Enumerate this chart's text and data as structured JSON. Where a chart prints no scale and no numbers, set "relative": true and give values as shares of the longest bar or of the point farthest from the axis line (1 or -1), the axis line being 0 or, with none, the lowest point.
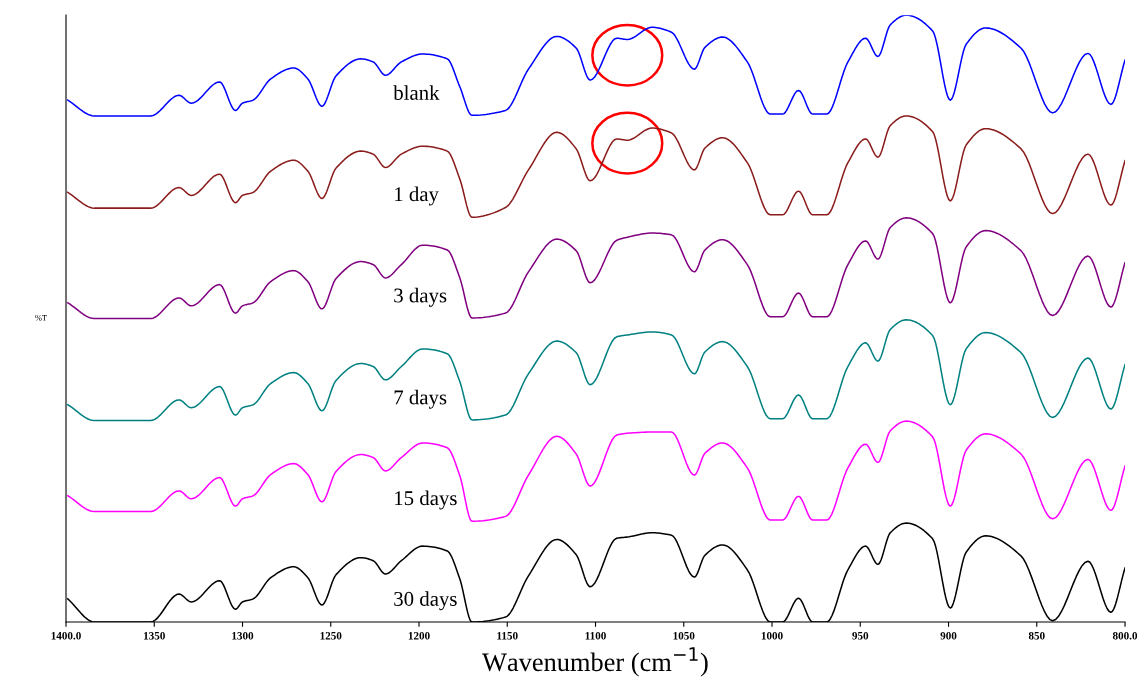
{
  "chart_data": {
    "type": "line",
    "relative": true,
    "xlabel": "Wavenumber (cm$^{−1}$)",
    "ylabel": "%T",
    "xlim": [
      1400,
      800
    ],
    "xticks": [
      {
        "value": 1400,
        "label": "1400.0"
      },
      1350,
      1300,
      1250,
      1200,
      1150,
      1100,
      1050,
      1000,
      950,
      900,
      850,
      {
        "value": 800,
        "label": "800.0"
      }
    ],
    "x": [
      1399,
      1384,
      1352,
      1336,
      1329,
      1313,
      1304,
      1300,
      1294,
      1284,
      1271,
      1263,
      1255,
      1247,
      1233,
      1226,
      1219,
      1210,
      1198,
      1184,
      1177,
      1170,
      1151,
      1138,
      1122,
      1111,
      1103,
      1088,
      1082,
      1068,
      1057,
      1044,
      1038,
      1028,
      1014,
      1001,
      994,
      985,
      977,
      969,
      957,
      947,
      940,
      933,
      924,
      909,
      899,
      890,
      879,
      859,
      841,
      821,
      808,
      800
    ],
    "series": [
      {
        "name": "blank",
        "color": "#0000ff",
        "values": [
          0.86,
          0.834,
          0.834,
          0.868,
          0.855,
          0.89,
          0.843,
          0.855,
          0.86,
          0.895,
          0.913,
          0.895,
          0.85,
          0.9,
          0.928,
          0.923,
          0.901,
          0.923,
          0.936,
          0.928,
          0.883,
          0.835,
          0.843,
          0.911,
          0.965,
          0.946,
          0.893,
          0.962,
          0.96,
          0.98,
          0.972,
          0.911,
          0.947,
          0.964,
          0.923,
          0.837,
          0.837,
          0.876,
          0.837,
          0.837,
          0.923,
          0.962,
          0.932,
          0.984,
          1.0,
          0.974,
          0.86,
          0.952,
          0.979,
          0.946,
          0.839,
          0.937,
          0.853,
          0.926
        ]
      },
      {
        "name": "1 day",
        "color": "#8b1c1c",
        "values": [
          0.708,
          0.682,
          0.682,
          0.716,
          0.703,
          0.738,
          0.691,
          0.703,
          0.708,
          0.743,
          0.761,
          0.743,
          0.698,
          0.748,
          0.776,
          0.771,
          0.749,
          0.771,
          0.784,
          0.776,
          0.731,
          0.667,
          0.683,
          0.745,
          0.807,
          0.78,
          0.727,
          0.796,
          0.794,
          0.814,
          0.806,
          0.745,
          0.781,
          0.798,
          0.757,
          0.671,
          0.671,
          0.71,
          0.671,
          0.671,
          0.757,
          0.796,
          0.766,
          0.818,
          0.834,
          0.808,
          0.694,
          0.786,
          0.813,
          0.78,
          0.673,
          0.771,
          0.687,
          0.76
        ]
      },
      {
        "name": "3 days",
        "color": "#800080",
        "values": [
          0.526,
          0.5,
          0.5,
          0.534,
          0.521,
          0.556,
          0.509,
          0.521,
          0.526,
          0.561,
          0.579,
          0.561,
          0.516,
          0.566,
          0.594,
          0.589,
          0.567,
          0.589,
          0.621,
          0.613,
          0.568,
          0.501,
          0.509,
          0.577,
          0.631,
          0.612,
          0.559,
          0.629,
          0.634,
          0.641,
          0.638,
          0.577,
          0.613,
          0.63,
          0.589,
          0.503,
          0.503,
          0.542,
          0.503,
          0.503,
          0.589,
          0.628,
          0.598,
          0.65,
          0.666,
          0.64,
          0.526,
          0.618,
          0.645,
          0.612,
          0.505,
          0.603,
          0.519,
          0.592
        ]
      },
      {
        "name": "7 days",
        "color": "#008080",
        "values": [
          0.358,
          0.332,
          0.332,
          0.366,
          0.353,
          0.388,
          0.341,
          0.353,
          0.358,
          0.393,
          0.411,
          0.393,
          0.348,
          0.398,
          0.426,
          0.421,
          0.399,
          0.421,
          0.45,
          0.442,
          0.397,
          0.333,
          0.341,
          0.409,
          0.463,
          0.444,
          0.391,
          0.47,
          0.473,
          0.478,
          0.473,
          0.409,
          0.445,
          0.462,
          0.421,
          0.335,
          0.335,
          0.374,
          0.335,
          0.335,
          0.421,
          0.46,
          0.43,
          0.482,
          0.498,
          0.472,
          0.358,
          0.45,
          0.477,
          0.444,
          0.337,
          0.435,
          0.351,
          0.424
        ]
      },
      {
        "name": "15 days",
        "color": "#ff00ff",
        "values": [
          0.208,
          0.182,
          0.182,
          0.216,
          0.203,
          0.238,
          0.191,
          0.203,
          0.208,
          0.243,
          0.261,
          0.243,
          0.198,
          0.248,
          0.276,
          0.271,
          0.249,
          0.271,
          0.295,
          0.287,
          0.242,
          0.166,
          0.174,
          0.242,
          0.306,
          0.277,
          0.224,
          0.308,
          0.311,
          0.313,
          0.313,
          0.242,
          0.278,
          0.295,
          0.254,
          0.168,
          0.168,
          0.207,
          0.168,
          0.168,
          0.254,
          0.293,
          0.263,
          0.315,
          0.331,
          0.305,
          0.191,
          0.283,
          0.31,
          0.277,
          0.17,
          0.268,
          0.184,
          0.257
        ]
      },
      {
        "name": "30 days",
        "color": "#000000",
        "values": [
          0.038,
          0.0,
          0.0,
          0.046,
          0.033,
          0.068,
          0.021,
          0.033,
          0.038,
          0.073,
          0.091,
          0.073,
          0.028,
          0.078,
          0.106,
          0.101,
          0.079,
          0.101,
          0.125,
          0.117,
          0.072,
          0.0,
          0.008,
          0.076,
          0.136,
          0.111,
          0.058,
          0.138,
          0.14,
          0.147,
          0.143,
          0.074,
          0.11,
          0.127,
          0.086,
          0.0,
          0.0,
          0.039,
          0.0,
          0.0,
          0.086,
          0.125,
          0.095,
          0.147,
          0.163,
          0.137,
          0.023,
          0.115,
          0.142,
          0.109,
          0.002,
          0.1,
          0.016,
          0.089
        ]
      }
    ]
  }
}
